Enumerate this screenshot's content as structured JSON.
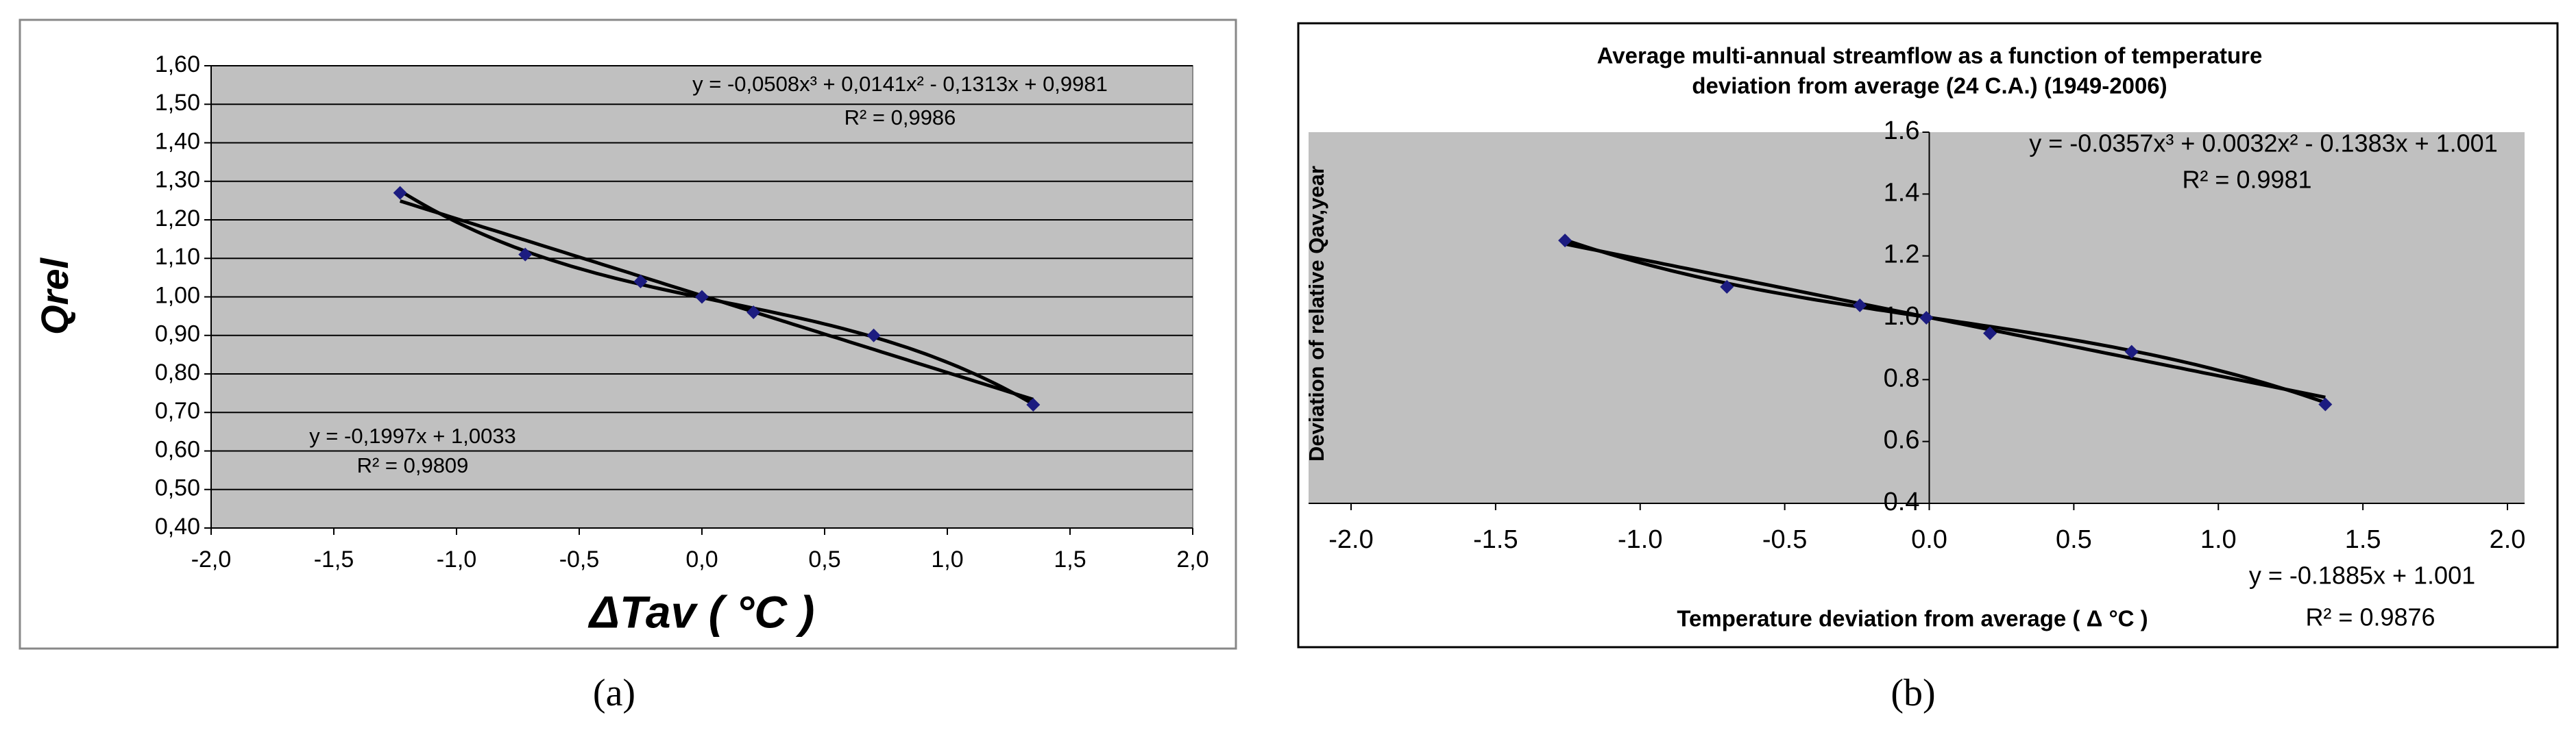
{
  "chart_data": [
    {
      "type": "scatter",
      "y_label": "Qrel",
      "x_label": "ΔTav ( °C )",
      "x": [
        -1.23,
        -0.72,
        -0.25,
        0.0,
        0.21,
        0.7,
        1.35
      ],
      "y": [
        1.27,
        1.11,
        1.04,
        1.0,
        0.96,
        0.9,
        0.72
      ],
      "color": "#1c1c80",
      "xlim": [
        -2,
        2
      ],
      "xticks": [
        {
          "value": -2,
          "label": "-2,0"
        },
        {
          "value": -1.5,
          "label": "-1,5"
        },
        {
          "value": -1,
          "label": "-1,0"
        },
        {
          "value": -0.5,
          "label": "-0,5"
        },
        {
          "value": 0,
          "label": "0,0"
        },
        {
          "value": 0.5,
          "label": "0,5"
        },
        {
          "value": 1,
          "label": "1,0"
        },
        {
          "value": 1.5,
          "label": "1,5"
        },
        {
          "value": 2,
          "label": "2,0"
        }
      ],
      "ylim": [
        0.4,
        1.6
      ],
      "yticks": [
        {
          "value": 0.4,
          "label": "0,40"
        },
        {
          "value": 0.5,
          "label": "0,50"
        },
        {
          "value": 0.6,
          "label": "0,60"
        },
        {
          "value": 0.7,
          "label": "0,70"
        },
        {
          "value": 0.8,
          "label": "0,80"
        },
        {
          "value": 0.9,
          "label": "0,90"
        },
        {
          "value": 1.0,
          "label": "1,00"
        },
        {
          "value": 1.1,
          "label": "1,10"
        },
        {
          "value": 1.2,
          "label": "1,20"
        },
        {
          "value": 1.3,
          "label": "1,30"
        },
        {
          "value": 1.4,
          "label": "1,40"
        },
        {
          "value": 1.5,
          "label": "1,50"
        },
        {
          "value": 1.6,
          "label": "1,60"
        }
      ],
      "grid": true,
      "trendlines": [
        {
          "coefficients": [
            0.9981,
            -0.1313,
            0.0141,
            -0.0508
          ],
          "equation": "y = -0,0508x³ + 0,0141x² - 0,1313x + 0,9981",
          "r2": "R² = 0,9986"
        },
        {
          "coefficients": [
            1.0033,
            -0.1997
          ],
          "equation": "y = -0,1997x + 1,0033",
          "r2": "R² = 0,9809"
        }
      ]
    },
    {
      "type": "scatter",
      "title": [
        "Average multi-annual streamflow as a function of temperature",
        "deviation from average (24 C.A.)   (1949-2006)"
      ],
      "y_label": "Deviation of relative Qav,year",
      "x_label": "Temperature deviation from average ( Δ °C )",
      "x": [
        -1.26,
        -0.7,
        -0.24,
        -0.01,
        0.21,
        0.7,
        1.37
      ],
      "y": [
        1.25,
        1.1,
        1.04,
        1.0,
        0.95,
        0.89,
        0.72
      ],
      "color": "#1c1c80",
      "xlim": [
        -2,
        2
      ],
      "xticks": [
        {
          "value": -2,
          "label": "-2.0"
        },
        -1.5,
        {
          "value": -1,
          "label": "-1.0"
        },
        -0.5,
        {
          "value": 0,
          "label": "0.0"
        },
        0.5,
        {
          "value": 1,
          "label": "1.0"
        },
        1.5,
        {
          "value": 2,
          "label": "2.0"
        }
      ],
      "ylim": [
        0.4,
        1.6
      ],
      "yticks": [
        0.4,
        0.6,
        0.8,
        {
          "value": 1,
          "label": "1.0"
        },
        1.2,
        1.4,
        1.6
      ],
      "grid": false,
      "trendlines": [
        {
          "coefficients": [
            1.001,
            -0.1383,
            0.0032,
            -0.0357
          ],
          "equation": "y = -0.0357x³ + 0.0032x² - 0.1383x + 1.001",
          "r2": "R² = 0.9981"
        },
        {
          "coefficients": [
            1.001,
            -0.1885
          ],
          "equation": "y = -0.1885x + 1.001",
          "r2": "R² = 0.9876"
        }
      ]
    }
  ],
  "captions": [
    "(a)",
    "(b)"
  ]
}
